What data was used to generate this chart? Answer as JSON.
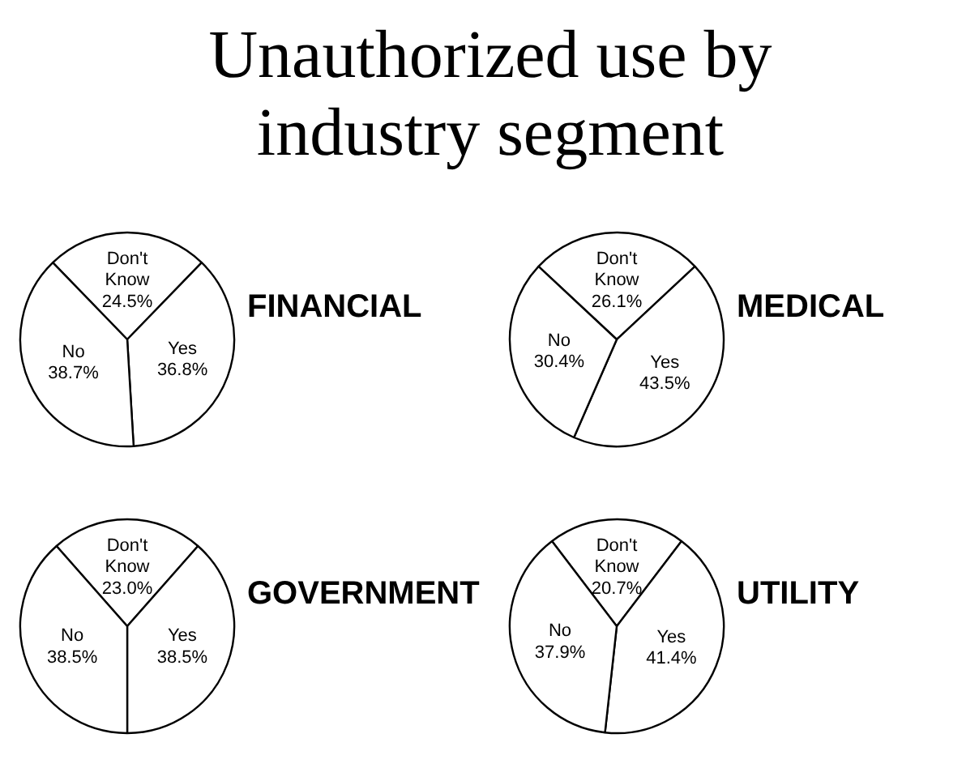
{
  "chart_data": [
    {
      "type": "other",
      "title": "Unauthorized use by industry segment"
    },
    {
      "type": "pie",
      "title": "FINANCIAL",
      "categories": [
        "Don't Know",
        "Yes",
        "No"
      ],
      "values": [
        24.5,
        36.8,
        38.7
      ],
      "value_labels": [
        "24.5%",
        "36.8%",
        "38.7%"
      ],
      "colors": [
        "#ffffff",
        "#ffffff",
        "#ffffff"
      ]
    },
    {
      "type": "pie",
      "title": "MEDICAL",
      "categories": [
        "Don't Know",
        "Yes",
        "No"
      ],
      "values": [
        26.1,
        43.5,
        30.4
      ],
      "value_labels": [
        "26.1%",
        "43.5%",
        "30.4%"
      ],
      "colors": [
        "#ffffff",
        "#ffffff",
        "#ffffff"
      ]
    },
    {
      "type": "pie",
      "title": "GOVERNMENT",
      "categories": [
        "Don't Know",
        "Yes",
        "No"
      ],
      "values": [
        23.0,
        38.5,
        38.5
      ],
      "value_labels": [
        "23.0%",
        "38.5%",
        "38.5%"
      ],
      "colors": [
        "#ffffff",
        "#ffffff",
        "#ffffff"
      ]
    },
    {
      "type": "pie",
      "title": "UTILITY",
      "categories": [
        "Don't Know",
        "Yes",
        "No"
      ],
      "values": [
        20.7,
        41.4,
        37.9
      ],
      "value_labels": [
        "20.7%",
        "41.4%",
        "37.9%"
      ],
      "colors": [
        "#ffffff",
        "#ffffff",
        "#ffffff"
      ]
    }
  ]
}
